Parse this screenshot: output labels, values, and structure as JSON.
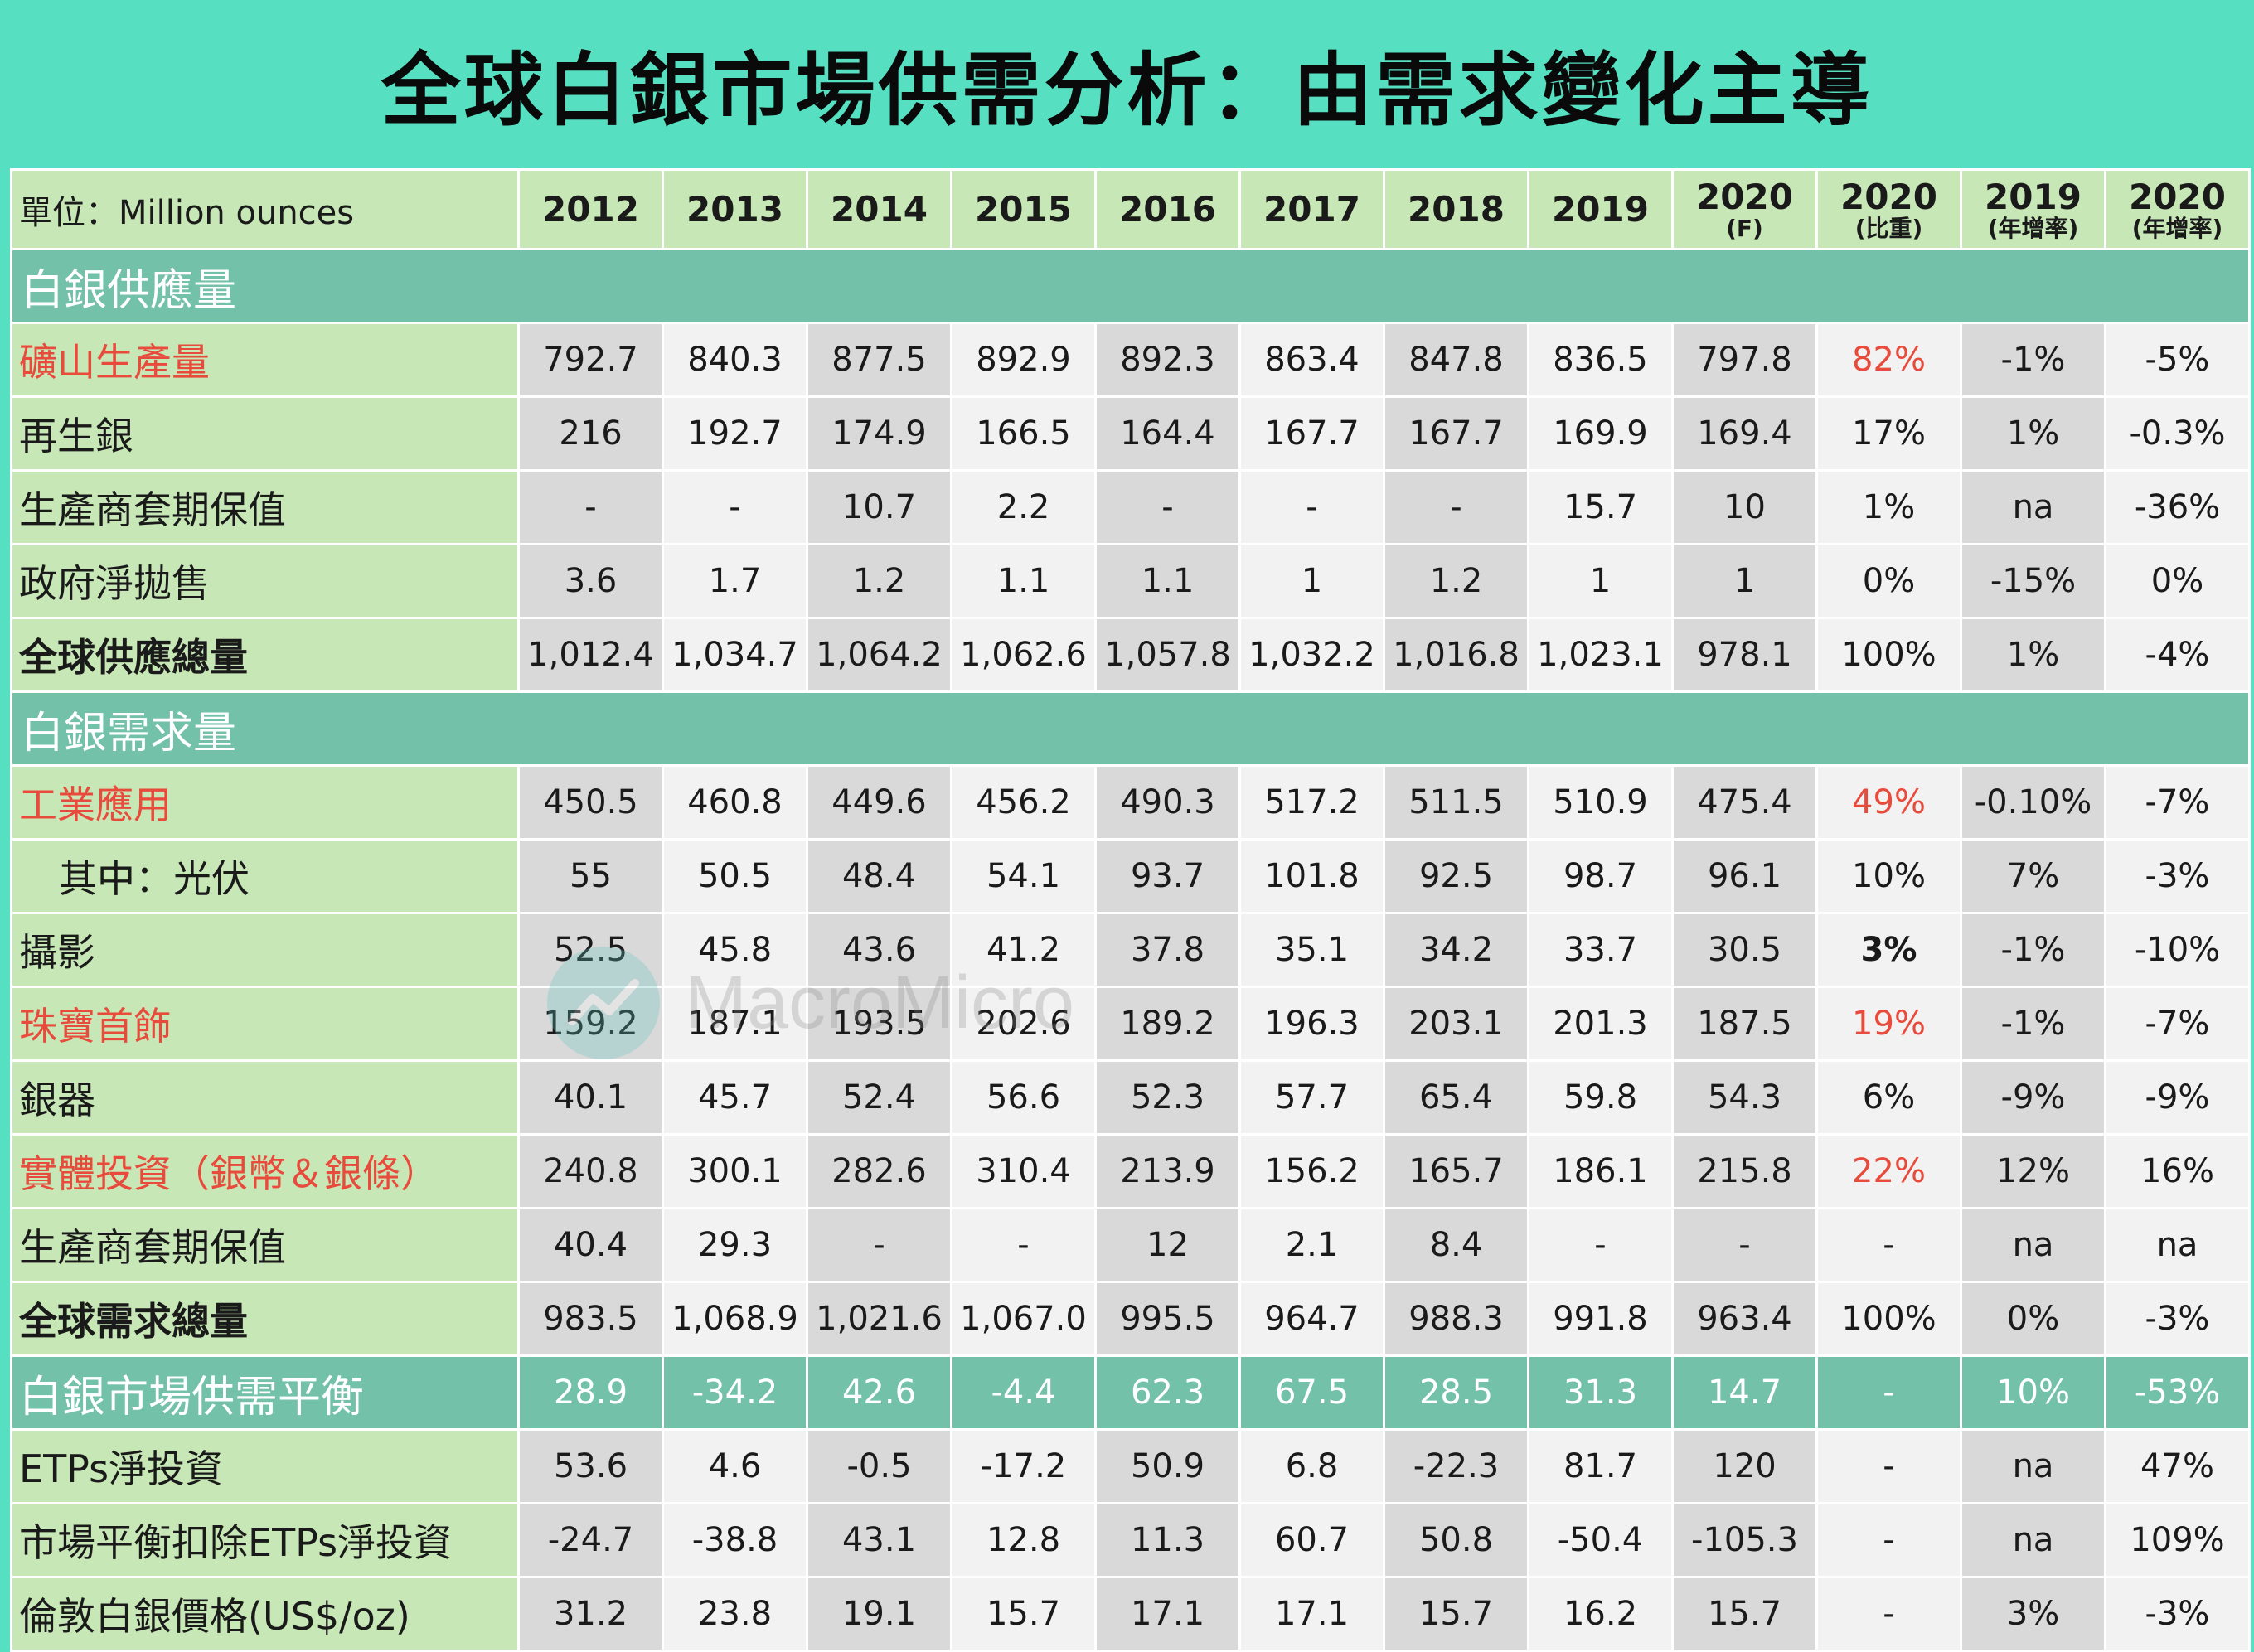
{
  "title": "全球白銀市場供需分析：由需求變化主導",
  "header": {
    "unit": "單位：Million ounces",
    "columns": [
      {
        "main": "2012",
        "sub": ""
      },
      {
        "main": "2013",
        "sub": ""
      },
      {
        "main": "2014",
        "sub": ""
      },
      {
        "main": "2015",
        "sub": ""
      },
      {
        "main": "2016",
        "sub": ""
      },
      {
        "main": "2017",
        "sub": ""
      },
      {
        "main": "2018",
        "sub": ""
      },
      {
        "main": "2019",
        "sub": ""
      },
      {
        "main": "2020",
        "sub": "(F)"
      },
      {
        "main": "2020",
        "sub": "(比重)"
      },
      {
        "main": "2019",
        "sub": "(年增率)"
      },
      {
        "main": "2020",
        "sub": "(年增率)"
      }
    ]
  },
  "supply": {
    "section": "白銀供應量",
    "rows": [
      {
        "label": "礦山生產量",
        "values": [
          "792.7",
          "840.3",
          "877.5",
          "892.9",
          "892.3",
          "863.4",
          "847.8",
          "836.5",
          "797.8",
          "82%",
          "-1%",
          "-5%"
        ]
      },
      {
        "label": "再生銀",
        "values": [
          "216",
          "192.7",
          "174.9",
          "166.5",
          "164.4",
          "167.7",
          "167.7",
          "169.9",
          "169.4",
          "17%",
          "1%",
          "-0.3%"
        ]
      },
      {
        "label": "生產商套期保值",
        "values": [
          "-",
          "-",
          "10.7",
          "2.2",
          "-",
          "-",
          "-",
          "15.7",
          "10",
          "1%",
          "na",
          "-36%"
        ]
      },
      {
        "label": "政府淨拋售",
        "values": [
          "3.6",
          "1.7",
          "1.2",
          "1.1",
          "1.1",
          "1",
          "1.2",
          "1",
          "1",
          "0%",
          "-15%",
          "0%"
        ]
      },
      {
        "label": "全球供應總量",
        "values": [
          "1,012.4",
          "1,034.7",
          "1,064.2",
          "1,062.6",
          "1,057.8",
          "1,032.2",
          "1,016.8",
          "1,023.1",
          "978.1",
          "100%",
          "1%",
          "-4%"
        ]
      }
    ]
  },
  "demand": {
    "section": "白銀需求量",
    "rows": [
      {
        "label": "工業應用",
        "values": [
          "450.5",
          "460.8",
          "449.6",
          "456.2",
          "490.3",
          "517.2",
          "511.5",
          "510.9",
          "475.4",
          "49%",
          "-0.10%",
          "-7%"
        ]
      },
      {
        "label": "其中：光伏",
        "values": [
          "55",
          "50.5",
          "48.4",
          "54.1",
          "93.7",
          "101.8",
          "92.5",
          "98.7",
          "96.1",
          "10%",
          "7%",
          "-3%"
        ]
      },
      {
        "label": "攝影",
        "values": [
          "52.5",
          "45.8",
          "43.6",
          "41.2",
          "37.8",
          "35.1",
          "34.2",
          "33.7",
          "30.5",
          "3%",
          "-1%",
          "-10%"
        ]
      },
      {
        "label": "珠寶首飾",
        "values": [
          "159.2",
          "187.1",
          "193.5",
          "202.6",
          "189.2",
          "196.3",
          "203.1",
          "201.3",
          "187.5",
          "19%",
          "-1%",
          "-7%"
        ]
      },
      {
        "label": "銀器",
        "values": [
          "40.1",
          "45.7",
          "52.4",
          "56.6",
          "52.3",
          "57.7",
          "65.4",
          "59.8",
          "54.3",
          "6%",
          "-9%",
          "-9%"
        ]
      },
      {
        "label": "實體投資（銀幣＆銀條）",
        "values": [
          "240.8",
          "300.1",
          "282.6",
          "310.4",
          "213.9",
          "156.2",
          "165.7",
          "186.1",
          "215.8",
          "22%",
          "12%",
          "16%"
        ]
      },
      {
        "label": "生產商套期保值",
        "values": [
          "40.4",
          "29.3",
          "-",
          "-",
          "12",
          "2.1",
          "8.4",
          "-",
          "-",
          "-",
          "na",
          "na"
        ]
      },
      {
        "label": "全球需求總量",
        "values": [
          "983.5",
          "1,068.9",
          "1,021.6",
          "1,067.0",
          "995.5",
          "964.7",
          "988.3",
          "991.8",
          "963.4",
          "100%",
          "0%",
          "-3%"
        ]
      }
    ]
  },
  "balance": {
    "label": "白銀市場供需平衡",
    "values": [
      "28.9",
      "-34.2",
      "42.6",
      "-4.4",
      "62.3",
      "67.5",
      "28.5",
      "31.3",
      "14.7",
      "-",
      "10%",
      "-53%"
    ]
  },
  "other": {
    "rows": [
      {
        "label": "ETPs淨投資",
        "values": [
          "53.6",
          "4.6",
          "-0.5",
          "-17.2",
          "50.9",
          "6.8",
          "-22.3",
          "81.7",
          "120",
          "-",
          "na",
          "47%"
        ]
      },
      {
        "label": "市場平衡扣除ETPs淨投資",
        "values": [
          "-24.7",
          "-38.8",
          "43.1",
          "12.8",
          "11.3",
          "60.7",
          "50.8",
          "-50.4",
          "-105.3",
          "-",
          "na",
          "109%"
        ]
      },
      {
        "label": "倫敦白銀價格(US$/oz)",
        "values": [
          "31.2",
          "23.8",
          "19.1",
          "15.7",
          "17.1",
          "17.1",
          "15.7",
          "16.2",
          "15.7",
          "-",
          "3%",
          "-3%"
        ]
      }
    ]
  },
  "colors": {
    "page_bg": "#56dfc0",
    "label_bg": "#c7e7b6",
    "section_bg": "#74c1aa",
    "highlight_red": "#e84b3c"
  },
  "watermark": "MacroMicro"
}
